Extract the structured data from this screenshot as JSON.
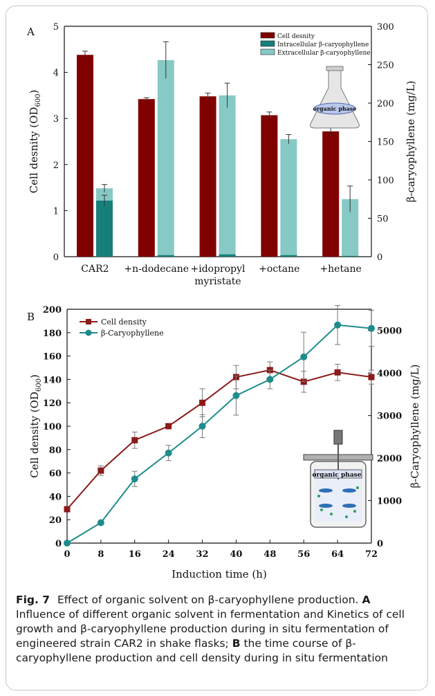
{
  "chart_data": [
    {
      "panel": "A",
      "type": "bar",
      "categories": [
        "CAR2",
        "+n-dodecane",
        "+idopropyl myristate",
        "+octane",
        "+hetane"
      ],
      "category_lines": [
        [
          "CAR2"
        ],
        [
          "+n-dodecane"
        ],
        [
          "+idopropyl",
          "myristate"
        ],
        [
          "+octane"
        ],
        [
          "+hetane"
        ]
      ],
      "ylabel_left": "Cell desnity (OD",
      "ylabel_left_sub": "600",
      "ylabel_right": "β-caryophyllene (mg/L)",
      "ylim_left": [
        0,
        5
      ],
      "ylim_right": [
        0,
        300
      ],
      "yticks_left": [
        "0",
        "1",
        "2",
        "3",
        "4",
        "5"
      ],
      "yticks_right": [
        "0",
        "50",
        "100",
        "150",
        "200",
        "250",
        "300"
      ],
      "legend_position": "top-right",
      "inset_label": "organic phase",
      "series": [
        {
          "name": "Cell desnity",
          "axis": "left",
          "color": "#800000",
          "values": [
            4.38,
            3.42,
            3.48,
            3.07,
            2.72
          ],
          "errors": [
            0.08,
            0.03,
            0.07,
            0.07,
            0.12
          ]
        },
        {
          "name": "Intracellular β-caryophyllene",
          "axis": "right",
          "color": "#167f7a",
          "values": [
            73,
            2,
            3,
            2,
            1
          ],
          "errors": [
            7,
            0,
            0,
            0,
            0
          ]
        },
        {
          "name": "Extracellular β-caryophyllene",
          "axis": "right",
          "color": "#86c9c5",
          "values": [
            89,
            256,
            210,
            153,
            75
          ],
          "errors": [
            5,
            24,
            16,
            6,
            17
          ]
        }
      ]
    },
    {
      "panel": "B",
      "type": "line",
      "x": [
        0,
        8,
        16,
        24,
        32,
        40,
        48,
        56,
        64,
        72
      ],
      "xticks": [
        "0",
        "8",
        "16",
        "24",
        "32",
        "40",
        "48",
        "56",
        "64",
        "72"
      ],
      "xlabel": "Induction time (h)",
      "ylabel_left": "Cell density (OD",
      "ylabel_left_sub": "600",
      "ylabel_right": "β-Caryophyllene (mg/L)",
      "xlim": [
        0,
        72
      ],
      "ylim_left": [
        0,
        200
      ],
      "ylim_right": [
        0,
        5500
      ],
      "yticks_left": [
        "0",
        "20",
        "40",
        "60",
        "80",
        "100",
        "120",
        "140",
        "160",
        "180",
        "200"
      ],
      "yticks_right": [
        "0",
        "1000",
        "2000",
        "3000",
        "4000",
        "5000"
      ],
      "legend_position": "top-left",
      "inset_label": "organic phase",
      "series": [
        {
          "name": "Cell density",
          "axis": "left",
          "marker": "square",
          "color": "#8b1a1a",
          "values": [
            29,
            62,
            88,
            100,
            120,
            142,
            148,
            138,
            146,
            142
          ],
          "errors": [
            0,
            4,
            7,
            2,
            12,
            10,
            7,
            9,
            7,
            6
          ]
        },
        {
          "name": "β-Caryophyllene",
          "axis": "right",
          "marker": "circle",
          "color": "#1e8c8c",
          "values": [
            0,
            480,
            1510,
            2120,
            2750,
            3470,
            3850,
            4380,
            5130,
            5050
          ],
          "errors": [
            0,
            0,
            180,
            180,
            270,
            460,
            220,
            580,
            460,
            420
          ]
        }
      ]
    }
  ],
  "caption": {
    "fig_label": "Fig. 7",
    "title": "Effect of organic solvent on β-caryophyllene production.",
    "a_label": "A",
    "a_text": "Influence of different organic solvent in fermentation and Kinetics of cell growth and β-caryophyllene production during in situ fermentation of engineered strain CAR2 in shake flasks;",
    "b_label": "B",
    "b_text": "the time course of β-caryophyllene production and cell density during in situ fermentation"
  }
}
